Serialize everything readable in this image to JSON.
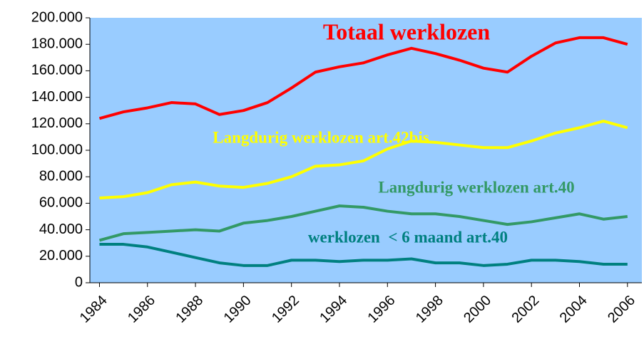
{
  "chart_data": {
    "type": "line",
    "x": [
      1984,
      1985,
      1986,
      1987,
      1988,
      1989,
      1990,
      1991,
      1992,
      1993,
      1994,
      1995,
      1996,
      1997,
      1998,
      1999,
      2000,
      2001,
      2002,
      2003,
      2004,
      2005,
      2006
    ],
    "series": [
      {
        "name": "Totaal werklozen",
        "color": "#ff0000",
        "values": [
          124000,
          129000,
          132000,
          136000,
          135000,
          127000,
          130000,
          136000,
          147000,
          159000,
          163000,
          166000,
          172000,
          177000,
          173000,
          168000,
          162000,
          159000,
          171000,
          181000,
          185000,
          185000,
          180000
        ]
      },
      {
        "name": "Langdurig werklozen art.42bis",
        "color": "#ffff00",
        "values": [
          64000,
          65000,
          68000,
          74000,
          76000,
          73000,
          72000,
          75000,
          80000,
          88000,
          89000,
          92000,
          101000,
          107000,
          106000,
          104000,
          102000,
          102000,
          107000,
          113000,
          117000,
          122000,
          117000
        ]
      },
      {
        "name": "Langdurig werklozen art.40",
        "color": "#339966",
        "values": [
          32000,
          37000,
          38000,
          39000,
          40000,
          39000,
          45000,
          47000,
          50000,
          54000,
          58000,
          57000,
          54000,
          52000,
          52000,
          50000,
          47000,
          44000,
          46000,
          49000,
          52000,
          48000,
          50000
        ]
      },
      {
        "name": "werklozen  < 6 maand art.40",
        "color": "#008080",
        "values": [
          29000,
          29000,
          27000,
          23000,
          19000,
          15000,
          13000,
          13000,
          17000,
          17000,
          16000,
          17000,
          17000,
          18000,
          15000,
          15000,
          13000,
          14000,
          17000,
          17000,
          16000,
          14000,
          14000
        ]
      }
    ],
    "xlim": [
      1983.6,
      2006.6
    ],
    "xticks": [
      1984,
      1986,
      1988,
      1990,
      1992,
      1994,
      1996,
      1998,
      2000,
      2002,
      2004,
      2006
    ],
    "ylim": [
      0,
      200000
    ],
    "yticks": [
      {
        "value": 0,
        "label": "0"
      },
      {
        "value": 20000,
        "label": "20.000"
      },
      {
        "value": 40000,
        "label": "40.000"
      },
      {
        "value": 60000,
        "label": "60.000"
      },
      {
        "value": 80000,
        "label": "80.000"
      },
      {
        "value": 100000,
        "label": "100.000"
      },
      {
        "value": 120000,
        "label": "120.000"
      },
      {
        "value": 140000,
        "label": "140.000"
      },
      {
        "value": 160000,
        "label": "160.000"
      },
      {
        "value": 180000,
        "label": "180.000"
      },
      {
        "value": 200000,
        "label": "200.000"
      }
    ],
    "plot_background": "#99ccff"
  }
}
